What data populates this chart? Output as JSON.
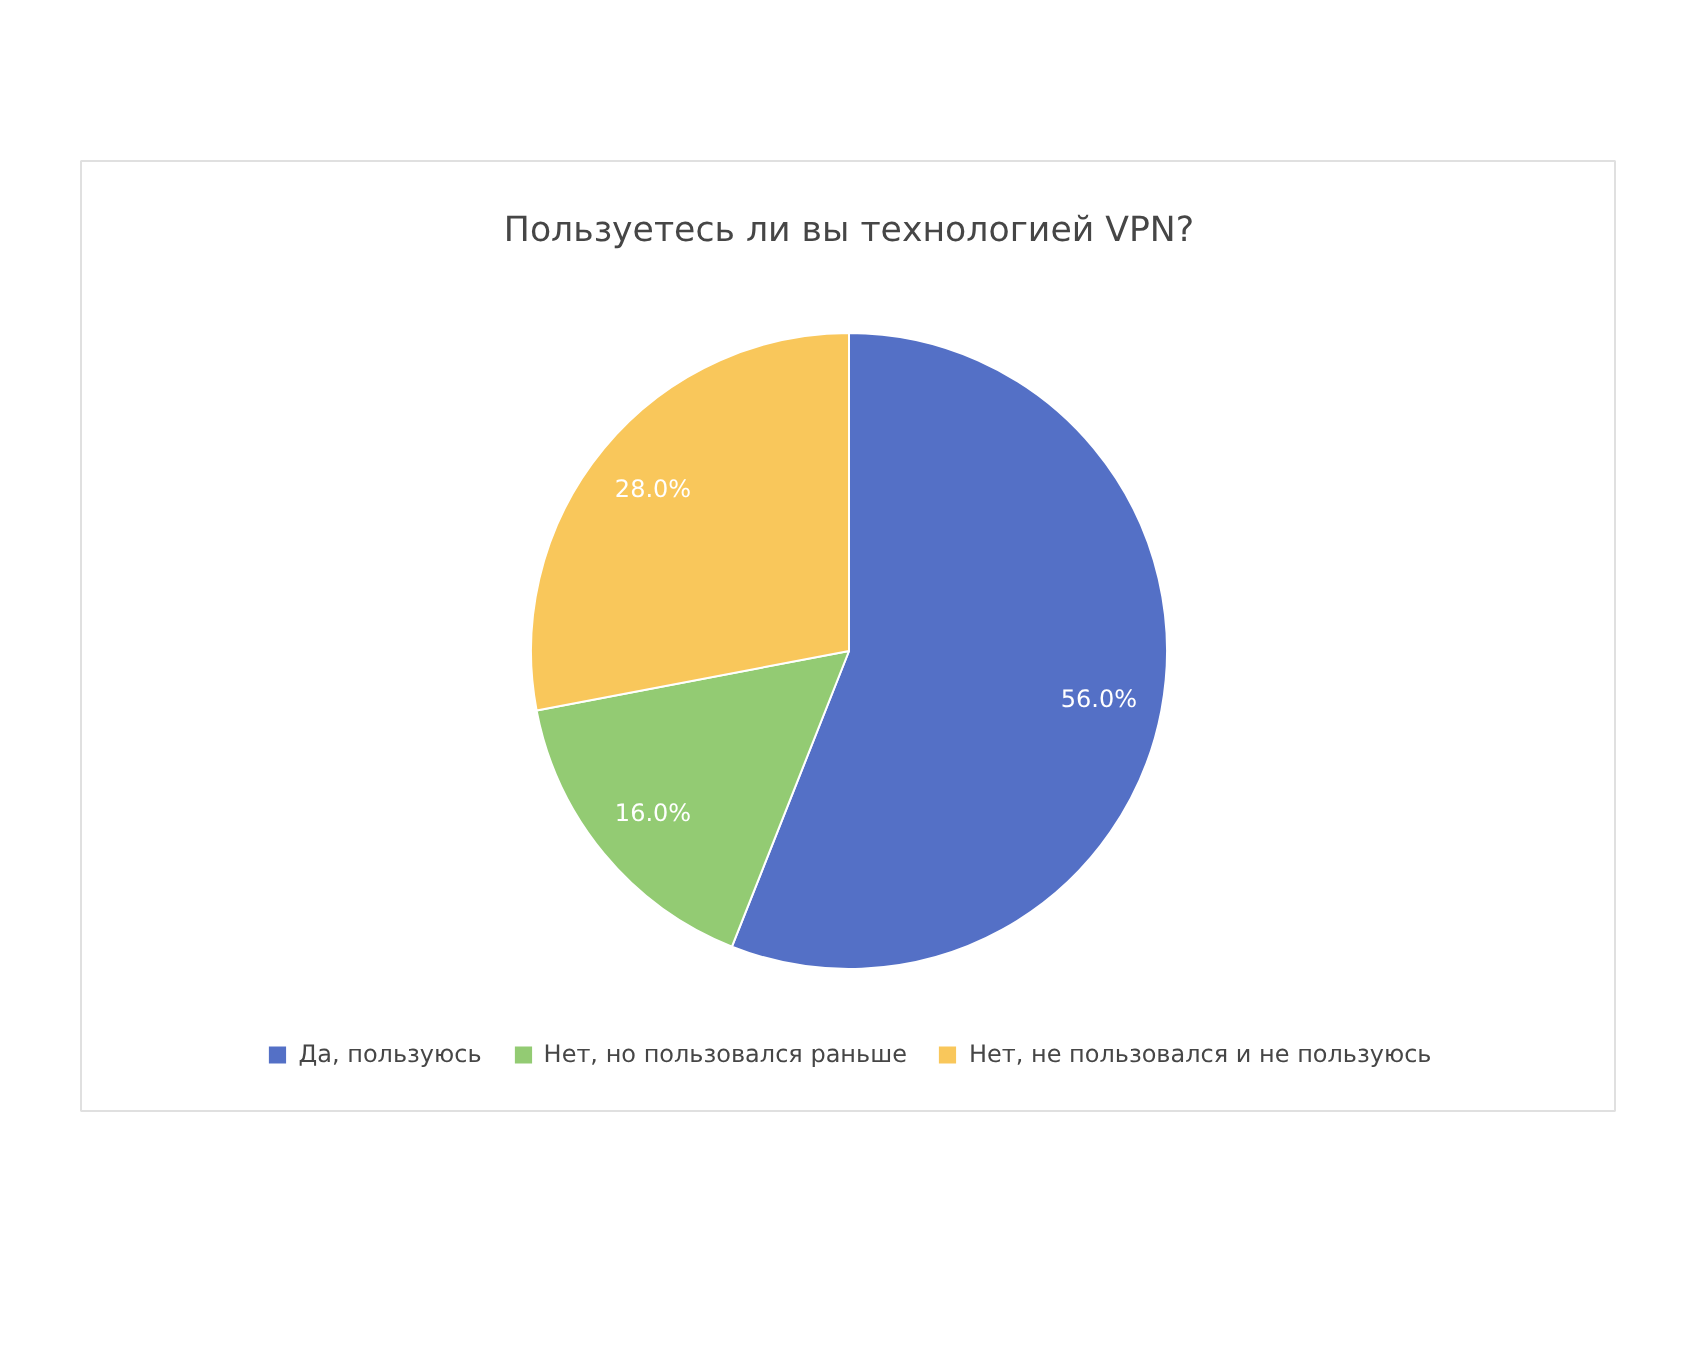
{
  "chart_data": {
    "type": "pie",
    "title": "Пользуетесь ли вы технологией VPN?",
    "categories": [
      "Да, пользуюсь",
      "Нет, но пользовался раньше",
      "Нет, не пользовался и не пользуюсь"
    ],
    "values": [
      56,
      16,
      28
    ],
    "colors": [
      "#5470c6",
      "#93cb73",
      "#f9c75b"
    ],
    "value_labels": [
      "56.0%",
      "16.0%",
      "28.0%"
    ],
    "legend": "bottom"
  }
}
